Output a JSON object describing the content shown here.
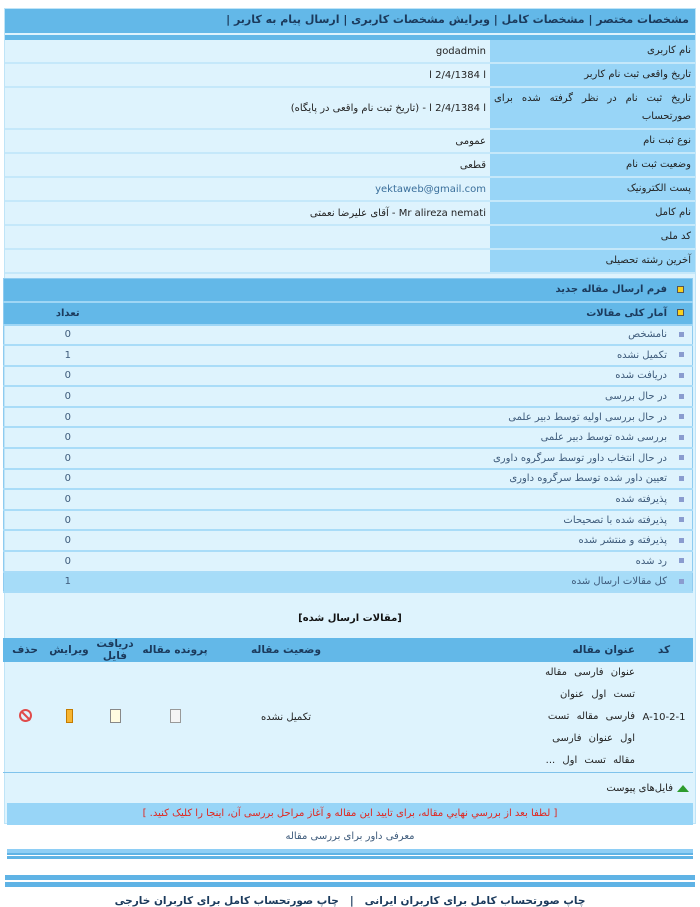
{
  "nav": {
    "items": [
      "مشخصات مختصر",
      "مشخصات کامل",
      "ویرایش مشخصات کاربری",
      "ارسال پیام به کاربر"
    ]
  },
  "info": [
    {
      "label": "نام کاربری",
      "value": "godadmin"
    },
    {
      "label": "تاریخ واقعی ثبت نام کاربر",
      "value": "ا   2/4/1384   ا"
    },
    {
      "label": "تاریخ ثبت نام در نظر گرفته شده برای صورتحساب",
      "value": "ا   2/4/1384   ا - (تاریخ ثبت نام واقعی در پایگاه)"
    },
    {
      "label": "نوع ثبت نام",
      "value": "عمومی"
    },
    {
      "label": "وضعیت ثبت نام",
      "value": "قطعی"
    },
    {
      "label": "پست الکترونیک",
      "value": "yektaweb@gmail.com"
    },
    {
      "label": "نام کامل",
      "value": "Mr alireza nemati - آقای علیرضا نعمتی"
    },
    {
      "label": "کد ملی",
      "value": ""
    },
    {
      "label": "آخرین رشته تحصیلی",
      "value": ""
    }
  ],
  "stats": {
    "new_form": "فرم ارسال مقاله جدید",
    "title": "آمار کلی مقالات",
    "count_header": "تعداد",
    "rows": [
      {
        "label": "نامشخص",
        "count": "0"
      },
      {
        "label": "تکمیل نشده",
        "count": "1"
      },
      {
        "label": "دریافت شده",
        "count": "0"
      },
      {
        "label": "در حال بررسی",
        "count": "0"
      },
      {
        "label": "در حال بررسی اولیه توسط دبیر علمی",
        "count": "0"
      },
      {
        "label": "بررسی شده توسط دبیر علمی",
        "count": "0"
      },
      {
        "label": "در حال انتخاب داور توسط سرگروه داوری",
        "count": "0"
      },
      {
        "label": "تعیین داور شده توسط سرگروه داوری",
        "count": "0"
      },
      {
        "label": "پذیرفته شده",
        "count": "0"
      },
      {
        "label": "پذیرفته شده با تصحیحات",
        "count": "0"
      },
      {
        "label": "پذیرفته و منتشر شده",
        "count": "0"
      },
      {
        "label": "رد شده",
        "count": "0"
      },
      {
        "label": "کل مقالات ارسال شده",
        "count": "1"
      }
    ]
  },
  "articles": {
    "section_title": "[مقالات ارسال شده]",
    "headers": {
      "code": "کد",
      "title": "عنوان مقاله",
      "status": "وضعیت مقاله",
      "file": "پرونده مقاله",
      "download": "دریافت فایل",
      "edit": "ویرایش",
      "delete": "حذف"
    },
    "rows": [
      {
        "code": "A-10-2-1",
        "title": "عنوان فارسی مقاله تست اول عنوان فارسی مقاله تست اول عنوان فارسی مقاله تست اول ...",
        "status": "تکمیل نشده"
      }
    ]
  },
  "attachments": "فایل‌های پیوست",
  "confirm_notice": "[ لطفا بعد از بررسي نهايي مقاله، برای تایید این مقاله و آغاز مراحل بررسی آن، اینجا را کلیک کنید. ]",
  "referee": "معرفی داور برای بررسی مقاله",
  "footer": {
    "print_iranian": "چاپ صورتحساب کامل برای کاربران ایرانی",
    "sep": "|",
    "print_foreign": "چاپ صورتحساب کامل برای کاربران خارجی"
  },
  "colors": {
    "header": "#63b8e8",
    "label_bg": "#98d5f7",
    "body_bg": "#def3fd",
    "notice": "#e0261f"
  }
}
